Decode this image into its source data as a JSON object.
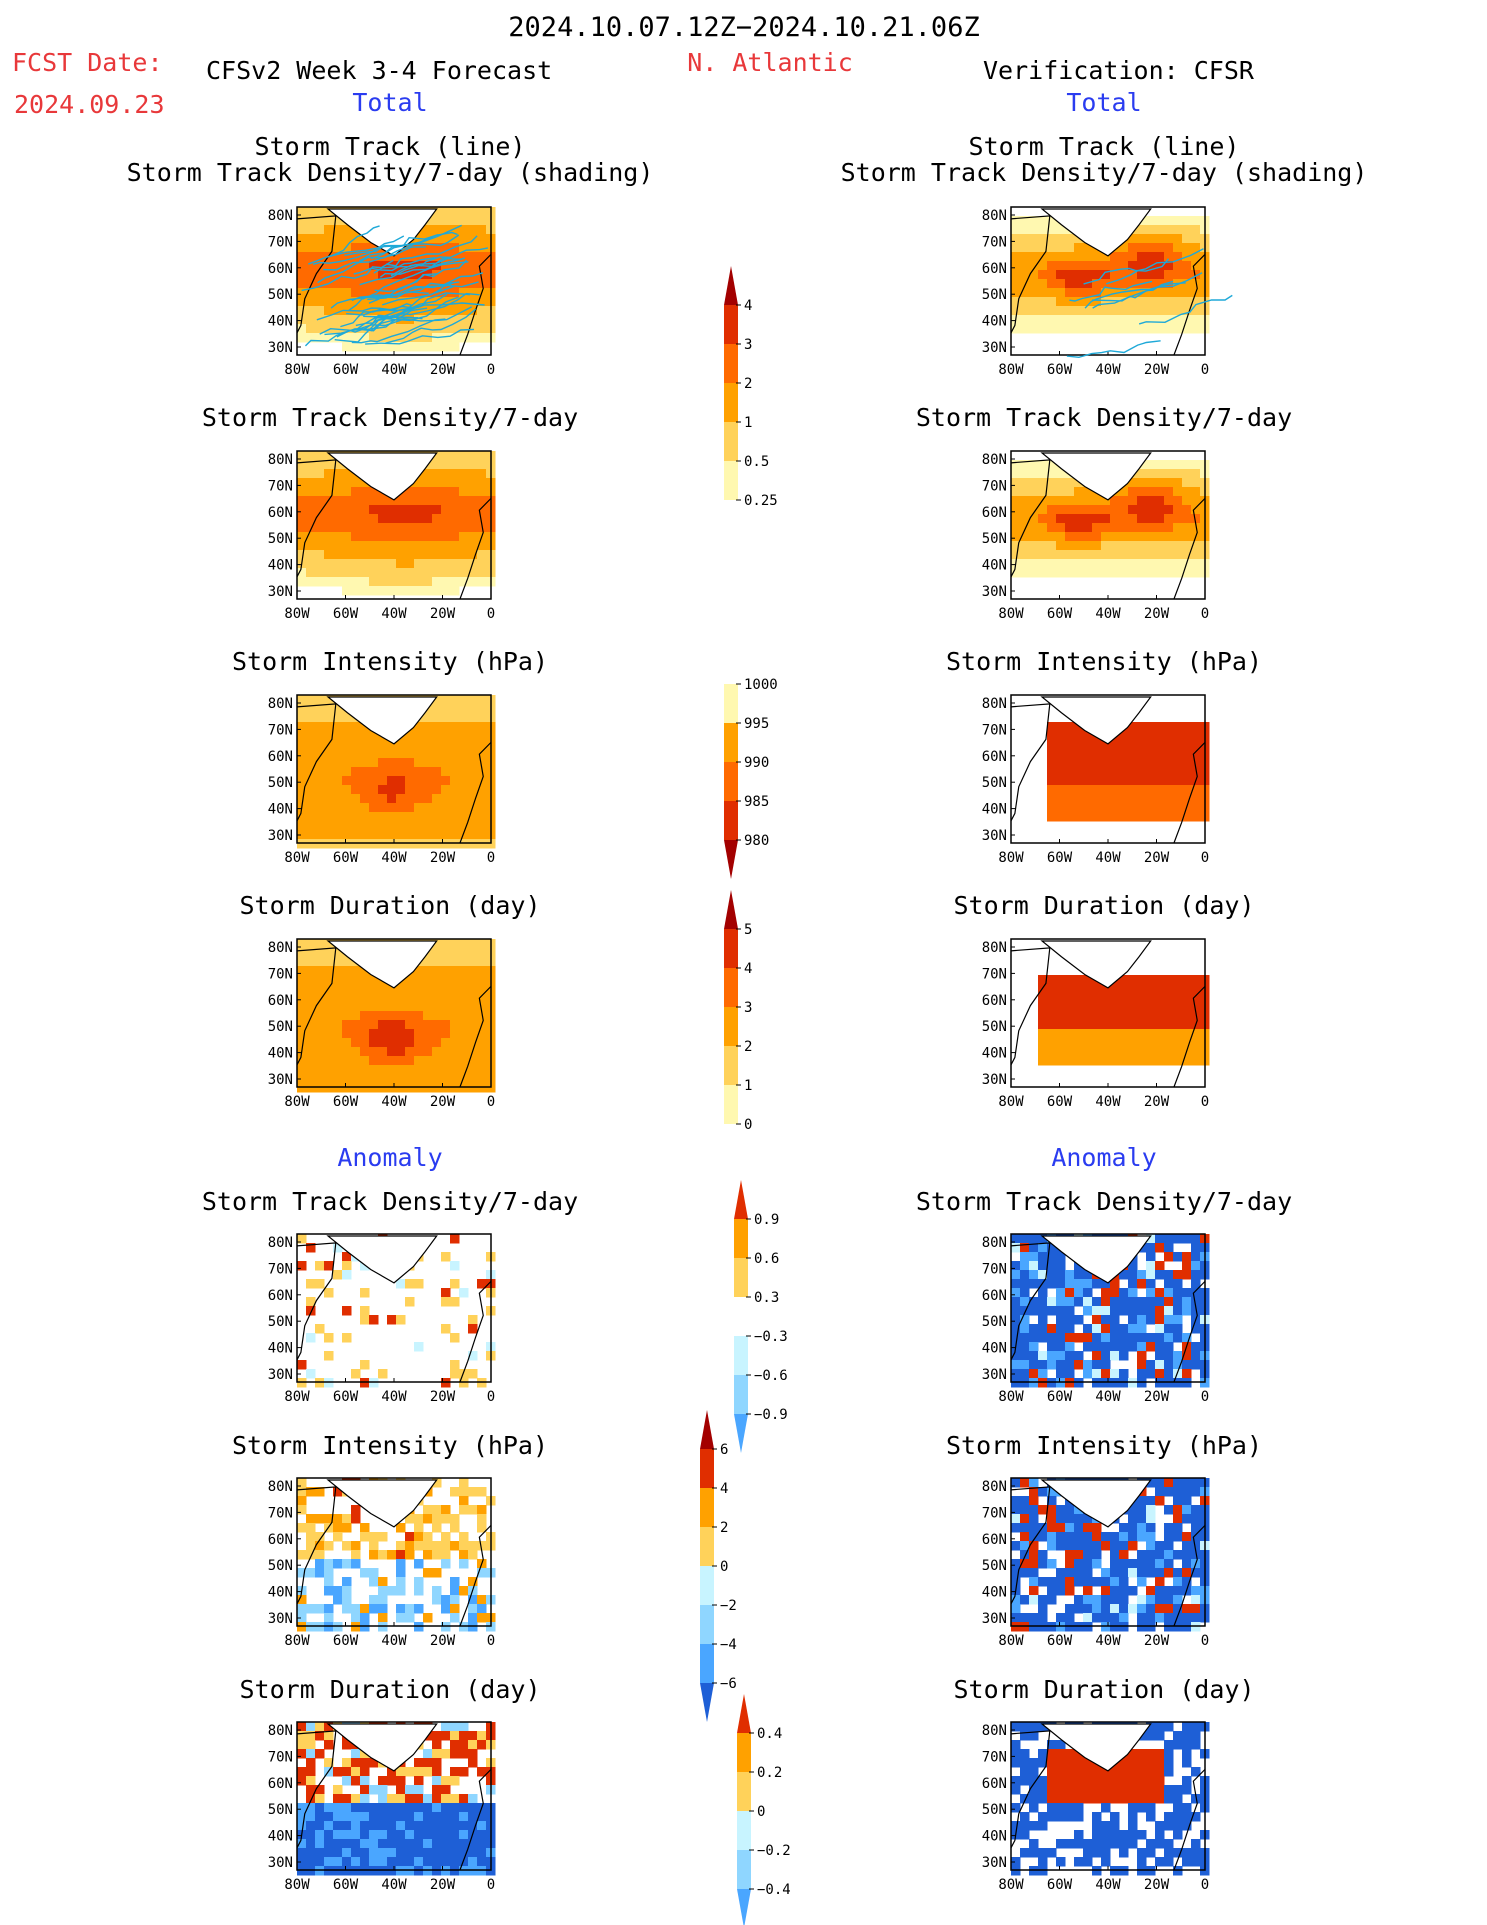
{
  "header": {
    "period": "2024.10.07.12Z−2024.10.21.06Z",
    "fcst_label": "FCST Date:",
    "fcst_date": "2024.09.23",
    "model": "CFSv2 Week 3-4 Forecast",
    "region": "N. Atlantic",
    "verification": "Verification: CFSR",
    "left_section": "Total",
    "right_section": "Total",
    "left_anom": "Anomaly",
    "right_anom": "Anomaly"
  },
  "panel_titles": {
    "track_line": "Storm Track (line)",
    "track_shading": "Storm Track Density/7-day (shading)",
    "density": "Storm Track Density/7-day",
    "intensity": "Storm Intensity (hPa)",
    "duration": "Storm Duration (day)"
  },
  "axes": {
    "lat": [
      "80N",
      "70N",
      "60N",
      "50N",
      "40N",
      "30N"
    ],
    "lon": [
      "80W",
      "60W",
      "40W",
      "20W",
      "0"
    ]
  },
  "colorbars": {
    "density": [
      "4",
      "3",
      "2",
      "1",
      "0.5",
      "0.25"
    ],
    "intensity": [
      "1000",
      "995",
      "990",
      "985",
      "980"
    ],
    "duration": [
      "5",
      "4",
      "3",
      "2",
      "1",
      "0"
    ],
    "density_anom": [
      "0.9",
      "0.6",
      "0.3",
      "−0.3",
      "−0.6",
      "−0.9"
    ],
    "intensity_anom": [
      "6",
      "4",
      "2",
      "0",
      "−2",
      "−4",
      "−6"
    ],
    "duration_anom": [
      "0.4",
      "0.2",
      "0",
      "−0.2",
      "−0.4"
    ]
  },
  "colors": {
    "warm": [
      "#fff8b0",
      "#ffd25a",
      "#ffa100",
      "#ff6a00",
      "#e02e00",
      "#a30000"
    ],
    "cool": [
      "#c8f4ff",
      "#8fd6ff",
      "#4aa6ff",
      "#1e5fd6"
    ],
    "track_line": "#1fa9d8",
    "header_red": "#e8383a",
    "header_blue": "#2a3cf0"
  }
}
